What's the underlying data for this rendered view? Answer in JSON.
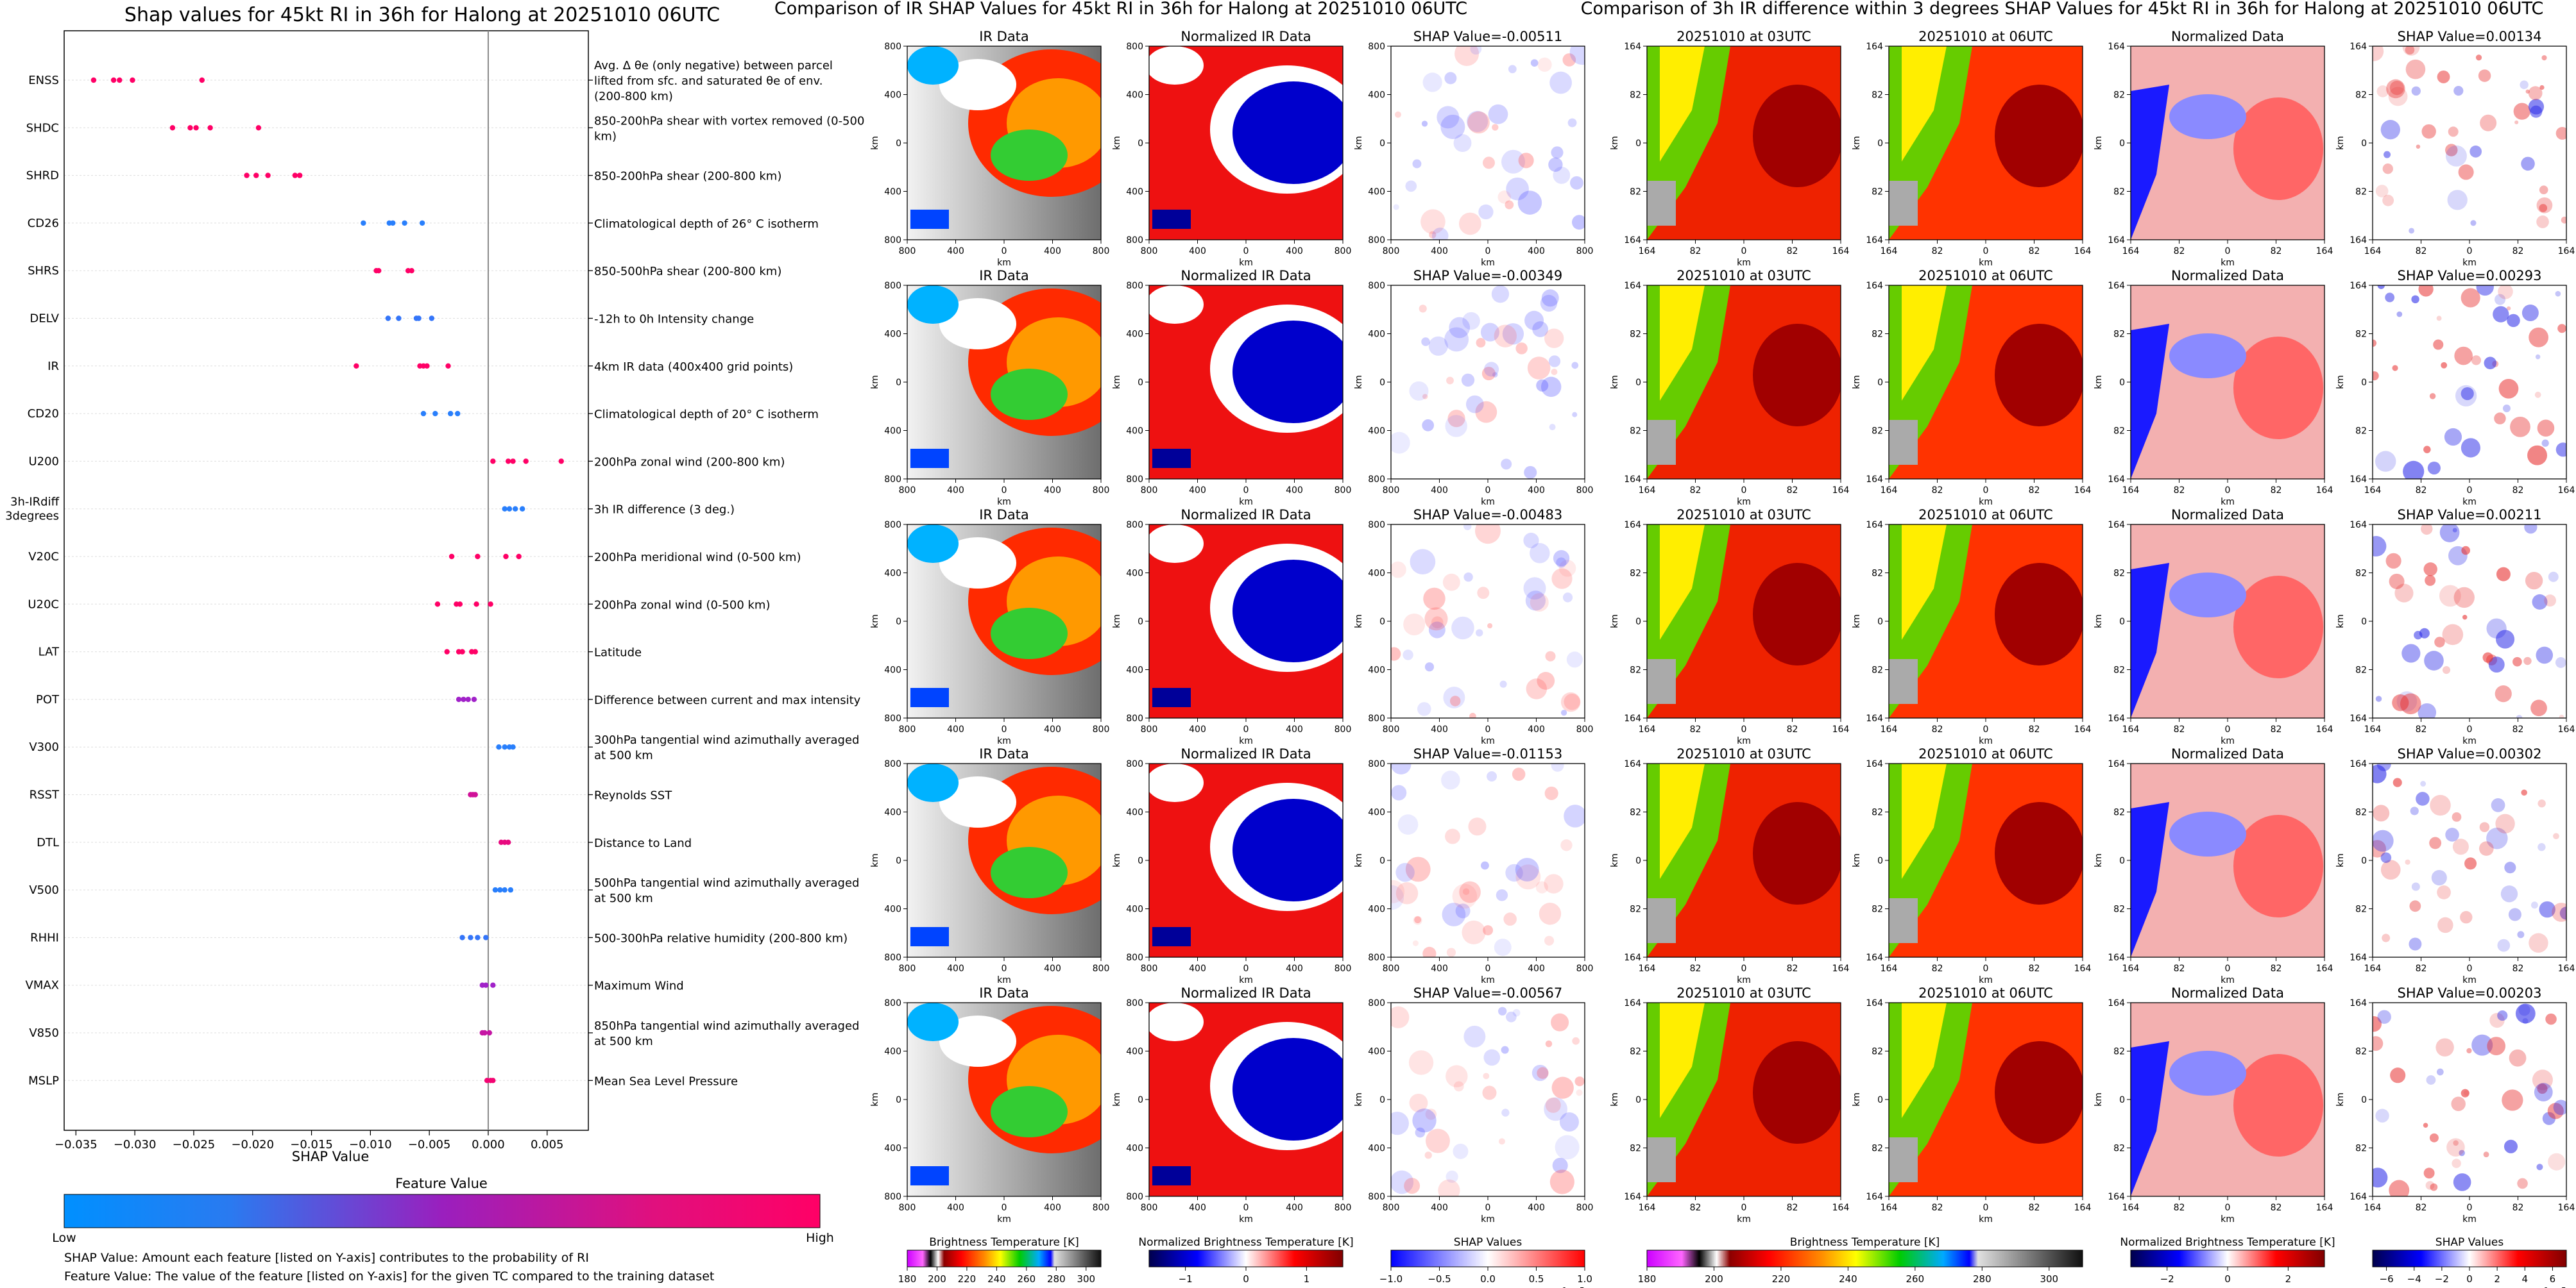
{
  "shap_panel": {
    "title": "Shap values for 45kt RI in 36h for Halong at 20251010 06UTC",
    "xlabel": "SHAP Value",
    "feature_bar_title": "Feature Value",
    "feature_bar_low": "Low",
    "feature_bar_high": "High",
    "legend_note_1": "SHAP Value: Amount each feature [listed on Y-axis] contributes to the probability of RI",
    "legend_note_2": "Feature Value: The value of the feature [listed on Y-axis] for the given TC compared to the training dataset"
  },
  "chart_data": [
    {
      "type": "scatter",
      "title": "Shap values for 45kt RI in 36h for Halong at 20251010 06UTC",
      "xlabel": "SHAP Value",
      "xlim": [
        -0.036,
        0.0085
      ],
      "xticks": [
        -0.035,
        -0.03,
        -0.025,
        -0.02,
        -0.015,
        -0.01,
        -0.005,
        0.0,
        0.005
      ],
      "xtick_labels": [
        "−0.035",
        "−0.030",
        "−0.025",
        "−0.020",
        "−0.015",
        "−0.010",
        "−0.005",
        "0.000",
        "0.005"
      ],
      "colors": {
        "low": "#1e88ff",
        "mid": "#8a2be2",
        "high": "#ff0066"
      },
      "features": [
        {
          "name": "ENSS",
          "desc": "Avg. Δ θe (only negative) between parcel lifted from sfc. and saturated θe of env. (200-800 km)",
          "shap": [
            -0.0335,
            -0.0318,
            -0.0313,
            -0.0302,
            -0.0243
          ],
          "fv": 1.0
        },
        {
          "name": "SHDC",
          "desc": "850-200hPa shear with vortex removed (0-500 km)",
          "shap": [
            -0.0268,
            -0.0253,
            -0.0248,
            -0.0236,
            -0.0195
          ],
          "fv": 1.0
        },
        {
          "name": "SHRD",
          "desc": "850-200hPa shear (200-800 km)",
          "shap": [
            -0.0205,
            -0.0197,
            -0.0187,
            -0.0164,
            -0.016
          ],
          "fv": 1.0
        },
        {
          "name": "CD26",
          "desc": "Climatological depth of 26° C isotherm",
          "shap": [
            -0.0106,
            -0.0084,
            -0.0081,
            -0.0071,
            -0.0056
          ],
          "fv": 0.05
        },
        {
          "name": "SHRS",
          "desc": "850-500hPa shear (200-800 km)",
          "shap": [
            -0.0095,
            -0.0093,
            -0.0068,
            -0.0065
          ],
          "fv": 1.0
        },
        {
          "name": "DELV",
          "desc": "-12h to 0h Intensity change",
          "shap": [
            -0.0085,
            -0.0076,
            -0.0061,
            -0.0059,
            -0.0048
          ],
          "fv": 0.1
        },
        {
          "name": "IR",
          "desc": "4km IR data (400x400 grid points)",
          "shap": [
            -0.0112,
            -0.0058,
            -0.0055,
            -0.0052,
            -0.0034
          ],
          "fv": 1.0
        },
        {
          "name": "CD20",
          "desc": "Climatological depth of 20° C isotherm",
          "shap": [
            -0.0055,
            -0.0045,
            -0.0032,
            -0.0026
          ],
          "fv": 0.05
        },
        {
          "name": "U200",
          "desc": "200hPa zonal wind (200-800 km)",
          "shap": [
            0.0004,
            0.0017,
            0.0021,
            0.0032,
            0.0062
          ],
          "fv": 1.0
        },
        {
          "name": "3h-IRdiff\n3degrees",
          "desc": "3h IR difference (3 deg.)",
          "shap": [
            0.0014,
            0.0018,
            0.0023,
            0.0029
          ],
          "fv": 0.05
        },
        {
          "name": "V20C",
          "desc": "200hPa meridional wind (0-500 km)",
          "shap": [
            -0.0031,
            -0.0009,
            0.0015,
            0.0026
          ],
          "fv": 1.0
        },
        {
          "name": "U20C",
          "desc": "200hPa zonal wind (0-500 km)",
          "shap": [
            -0.0043,
            -0.0027,
            -0.0024,
            -0.001,
            0.0002
          ],
          "fv": 1.0
        },
        {
          "name": "LAT",
          "desc": "Latitude",
          "shap": [
            -0.0035,
            -0.0025,
            -0.0022,
            -0.0014,
            -0.0011
          ],
          "fv": 1.0
        },
        {
          "name": "POT",
          "desc": "Difference between current and max intensity",
          "shap": [
            -0.0025,
            -0.0021,
            -0.0017,
            -0.0012
          ],
          "fv": 0.6
        },
        {
          "name": "V300",
          "desc": "300hPa tangential wind azimuthally averaged at 500 km",
          "shap": [
            0.0009,
            0.0014,
            0.0018,
            0.0021
          ],
          "fv": 0.05
        },
        {
          "name": "RSST",
          "desc": "Reynolds SST",
          "shap": [
            -0.0015,
            -0.0013,
            -0.0011
          ],
          "fv": 0.8
        },
        {
          "name": "DTL",
          "desc": "Distance to Land",
          "shap": [
            0.0011,
            0.0014,
            0.0017
          ],
          "fv": 0.9
        },
        {
          "name": "V500",
          "desc": "500hPa tangential wind azimuthally averaged at 500 km",
          "shap": [
            0.0006,
            0.001,
            0.0014,
            0.0019
          ],
          "fv": 0.05
        },
        {
          "name": "RHHI",
          "desc": "500-300hPa relative humidity (200-800 km)",
          "shap": [
            -0.0022,
            -0.0015,
            -0.0009,
            -0.0002
          ],
          "fv": 0.1
        },
        {
          "name": "VMAX",
          "desc": "Maximum Wind",
          "shap": [
            -0.0005,
            -0.0002,
            0.0004
          ],
          "fv": 0.6
        },
        {
          "name": "V850",
          "desc": "850hPa tangential wind azimuthally averaged at 500 km",
          "shap": [
            -0.0005,
            -0.0003,
            0.0001
          ],
          "fv": 0.75
        },
        {
          "name": "MSLP",
          "desc": "Mean Sea Level Pressure",
          "shap": [
            -0.0001,
            0.0002,
            0.0004
          ],
          "fv": 0.95
        }
      ]
    },
    {
      "type": "heatmap",
      "suptitle": "Comparison of IR SHAP Values for 45kt RI in 36h for Halong at 20251010 06UTC",
      "column_titles": [
        "IR Data",
        "Normalized IR Data",
        "SHAP Value"
      ],
      "shap_values": [
        "-0.00511",
        "-0.00349",
        "-0.00483",
        "-0.01153",
        "-0.00567"
      ],
      "axis_label": "km",
      "x_ticks": [
        "800",
        "400",
        "0",
        "400",
        "800"
      ],
      "y_ticks": [
        "800",
        "400",
        "0",
        "400",
        "800"
      ],
      "colorbars": [
        {
          "label": "Brightness Temperature [K]",
          "ticks": [
            "180",
            "200",
            "220",
            "240",
            "260",
            "280",
            "300"
          ],
          "range": [
            180,
            310
          ]
        },
        {
          "label": "Normalized Brightness Temperature [K]",
          "ticks": [
            "−1",
            "0",
            "1"
          ],
          "range": [
            -1.6,
            1.6
          ]
        },
        {
          "label": "SHAP Values",
          "ticks": [
            "−1.0",
            "−0.5",
            "0.0",
            "0.5",
            "1.0"
          ],
          "range": [
            -1.0,
            1.0
          ],
          "offset": "1e−5"
        }
      ]
    },
    {
      "type": "heatmap",
      "suptitle": "Comparison of 3h IR difference within 3 degrees SHAP Values for 45kt RI in 36h for Halong at 20251010 06UTC",
      "column_titles": [
        "20251010 at 03UTC",
        "20251010 at 06UTC",
        "Normalized Data",
        "SHAP Value"
      ],
      "shap_values": [
        "0.00134",
        "0.00293",
        "0.00211",
        "0.00302",
        "0.00203"
      ],
      "axis_label": "km",
      "x_ticks": [
        "164",
        "82",
        "0",
        "82",
        "164"
      ],
      "y_ticks": [
        "164",
        "82",
        "0",
        "82",
        "164"
      ],
      "colorbars": [
        {
          "label": "Brightness Temperature [K]",
          "ticks": [
            "180",
            "200",
            "220",
            "240",
            "260",
            "280",
            "300"
          ],
          "range": [
            180,
            310
          ]
        },
        {
          "label": "Normalized Brightness Temperature [K]",
          "ticks": [
            "−2",
            "0",
            "2"
          ],
          "range": [
            -3.2,
            3.2
          ]
        },
        {
          "label": "SHAP Values",
          "ticks": [
            "−6",
            "−4",
            "−2",
            "0",
            "2",
            "4",
            "6"
          ],
          "range": [
            -7,
            7
          ],
          "offset": "1e−5"
        }
      ]
    }
  ]
}
